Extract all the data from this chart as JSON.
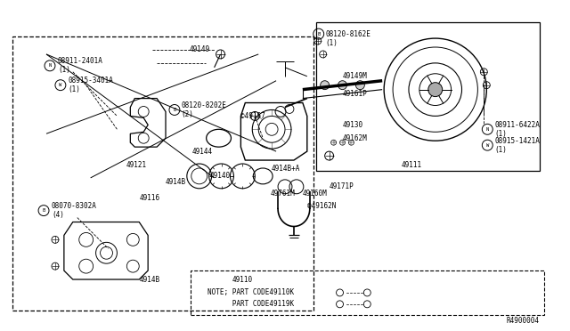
{
  "bg_color": "#ffffff",
  "line_color": "#000000",
  "text_color": "#000000",
  "fig_width": 6.4,
  "fig_height": 3.72,
  "dpi": 100,
  "watermark": "R4900004",
  "note_line1": "NOTE; PART CODE49110K",
  "note_line2": "      PART CODE49119K",
  "fs": 5.5,
  "fs_small": 4.5
}
